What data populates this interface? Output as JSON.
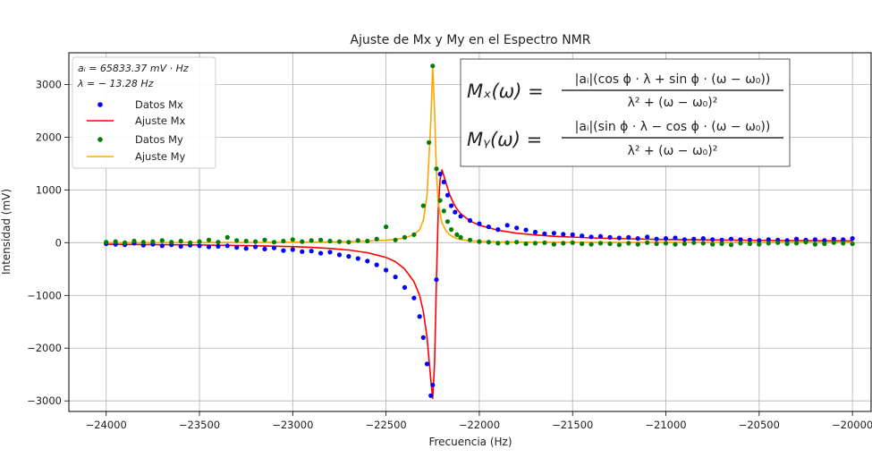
{
  "chart_data": {
    "type": "scatter",
    "title": "Ajuste de Mx y My en el Espectro NMR",
    "xlabel": "Frecuencia (Hz)",
    "ylabel": "Intensidad (mV)",
    "xlim": [
      -24200,
      -19900
    ],
    "ylim": [
      -3200,
      3600
    ],
    "xticks": [
      -24000,
      -23500,
      -23000,
      -22500,
      -22000,
      -21500,
      -21000,
      -20500,
      -20000
    ],
    "yticks": [
      -3000,
      -2000,
      -1000,
      0,
      1000,
      2000,
      3000
    ],
    "xtick_labels": [
      "−24000",
      "−23500",
      "−23000",
      "−22500",
      "−22000",
      "−21500",
      "−21000",
      "−20500",
      "−20000"
    ],
    "ytick_labels": [
      "−3000",
      "−2000",
      "−1000",
      "0",
      "1000",
      "2000",
      "3000"
    ],
    "grid": true,
    "legend": {
      "position": "top-left",
      "param_lines": [
        "aᵢ = 65833.37 mV · Hz",
        "λ = − 13.28 Hz"
      ],
      "entries": [
        {
          "label": "Datos Mx",
          "kind": "marker",
          "color": "#0000ff"
        },
        {
          "label": "Ajuste Mx",
          "kind": "line",
          "color": "#ff0000"
        },
        {
          "label": "Datos My",
          "kind": "marker",
          "color": "#008000"
        },
        {
          "label": "Ajuste My",
          "kind": "line",
          "color": "#ffa500"
        }
      ]
    },
    "formula_box": {
      "position": "top-right",
      "mx_lhs": "Mₓ(ω) =",
      "mx_num": "|aᵢ|(cos ϕ · λ + sin ϕ · (ω − ω₀))",
      "mx_den": "λ² + (ω − ω₀)²",
      "my_lhs": "Mᵧ(ω) =",
      "my_num": "|aᵢ|(sin ϕ · λ − cos ϕ · (ω − ω₀))",
      "my_den": "λ² + (ω − ω₀)²"
    },
    "series": [
      {
        "name": "Datos Mx",
        "kind": "scatter",
        "color": "#0000ff",
        "x": [
          -24000,
          -23950,
          -23900,
          -23850,
          -23800,
          -23750,
          -23700,
          -23650,
          -23600,
          -23550,
          -23500,
          -23450,
          -23400,
          -23350,
          -23300,
          -23250,
          -23200,
          -23150,
          -23100,
          -23050,
          -23000,
          -22950,
          -22900,
          -22850,
          -22800,
          -22750,
          -22700,
          -22650,
          -22600,
          -22550,
          -22500,
          -22450,
          -22400,
          -22350,
          -22320,
          -22300,
          -22280,
          -22260,
          -22250,
          -22230,
          -22210,
          -22190,
          -22170,
          -22150,
          -22130,
          -22100,
          -22050,
          -22000,
          -21950,
          -21900,
          -21850,
          -21800,
          -21750,
          -21700,
          -21650,
          -21600,
          -21550,
          -21500,
          -21450,
          -21400,
          -21350,
          -21300,
          -21250,
          -21200,
          -21150,
          -21100,
          -21050,
          -21000,
          -20950,
          -20900,
          -20850,
          -20800,
          -20750,
          -20700,
          -20650,
          -20600,
          -20550,
          -20500,
          -20450,
          -20400,
          -20350,
          -20300,
          -20250,
          -20200,
          -20150,
          -20100,
          -20050,
          -20000
        ],
        "y": [
          -20,
          -30,
          -40,
          -10,
          -50,
          -30,
          -60,
          -40,
          -70,
          -50,
          -60,
          -80,
          -70,
          -60,
          -90,
          -110,
          -80,
          -120,
          -100,
          -150,
          -130,
          -170,
          -160,
          -200,
          -180,
          -230,
          -260,
          -300,
          -350,
          -420,
          -520,
          -650,
          -850,
          -1050,
          -1400,
          -1800,
          -2300,
          -2900,
          -2700,
          -700,
          1300,
          1150,
          900,
          700,
          580,
          500,
          420,
          360,
          300,
          250,
          330,
          280,
          240,
          200,
          170,
          180,
          160,
          150,
          130,
          110,
          120,
          100,
          90,
          100,
          80,
          110,
          70,
          80,
          90,
          60,
          70,
          80,
          60,
          50,
          70,
          60,
          50,
          40,
          60,
          50,
          40,
          70,
          50,
          60,
          40,
          70,
          60,
          80
        ]
      },
      {
        "name": "Ajuste Mx",
        "kind": "line",
        "color": "#ff0000",
        "x": [
          -24000,
          -23800,
          -23600,
          -23400,
          -23200,
          -23000,
          -22900,
          -22800,
          -22700,
          -22600,
          -22500,
          -22450,
          -22400,
          -22350,
          -22320,
          -22300,
          -22280,
          -22260,
          -22250,
          -22240,
          -22230,
          -22220,
          -22210,
          -22200,
          -22180,
          -22160,
          -22140,
          -22120,
          -22100,
          -22050,
          -22000,
          -21900,
          -21800,
          -21700,
          -21600,
          -21400,
          -21200,
          -21000,
          -20800,
          -20600,
          -20400,
          -20200,
          -20000
        ],
        "y": [
          -30,
          -35,
          -40,
          -50,
          -60,
          -75,
          -90,
          -110,
          -140,
          -190,
          -280,
          -360,
          -500,
          -740,
          -1000,
          -1300,
          -1800,
          -2600,
          -2950,
          -2300,
          -700,
          600,
          1200,
          1380,
          1150,
          920,
          760,
          640,
          550,
          410,
          330,
          235,
          180,
          145,
          120,
          90,
          72,
          60,
          52,
          45,
          40,
          36,
          33
        ]
      },
      {
        "name": "Datos My",
        "kind": "scatter",
        "color": "#008000",
        "x": [
          -24000,
          -23950,
          -23900,
          -23850,
          -23800,
          -23750,
          -23700,
          -23650,
          -23600,
          -23550,
          -23500,
          -23450,
          -23400,
          -23350,
          -23300,
          -23250,
          -23200,
          -23150,
          -23100,
          -23050,
          -23000,
          -22950,
          -22900,
          -22850,
          -22800,
          -22750,
          -22700,
          -22650,
          -22600,
          -22550,
          -22500,
          -22450,
          -22400,
          -22350,
          -22300,
          -22270,
          -22250,
          -22230,
          -22210,
          -22190,
          -22170,
          -22150,
          -22120,
          -22100,
          -22050,
          -22000,
          -21950,
          -21900,
          -21850,
          -21800,
          -21750,
          -21700,
          -21650,
          -21600,
          -21550,
          -21500,
          -21450,
          -21400,
          -21350,
          -21300,
          -21250,
          -21200,
          -21150,
          -21100,
          -21050,
          -21000,
          -20950,
          -20900,
          -20850,
          -20800,
          -20750,
          -20700,
          -20650,
          -20600,
          -20550,
          -20500,
          -20450,
          -20400,
          -20350,
          -20300,
          -20250,
          -20200,
          -20150,
          -20100,
          -20050,
          -20000
        ],
        "y": [
          10,
          20,
          0,
          30,
          10,
          20,
          40,
          10,
          30,
          0,
          20,
          50,
          10,
          100,
          40,
          30,
          20,
          50,
          10,
          30,
          60,
          20,
          40,
          50,
          30,
          20,
          10,
          40,
          30,
          70,
          300,
          50,
          100,
          150,
          700,
          1900,
          3350,
          1400,
          800,
          600,
          400,
          250,
          150,
          100,
          50,
          20,
          10,
          -10,
          0,
          10,
          -20,
          -10,
          0,
          -30,
          -10,
          0,
          -20,
          -30,
          -10,
          -20,
          -40,
          -10,
          -30,
          0,
          -20,
          -10,
          -30,
          -20,
          0,
          -10,
          -30,
          -20,
          -40,
          -10,
          -20,
          -30,
          -10,
          0,
          -20,
          -10,
          10,
          -30,
          -20,
          0,
          -10,
          -20
        ]
      },
      {
        "name": "Ajuste My",
        "kind": "line",
        "color": "#ffa500",
        "x": [
          -24000,
          -23600,
          -23200,
          -23000,
          -22800,
          -22600,
          -22500,
          -22450,
          -22400,
          -22350,
          -22320,
          -22300,
          -22280,
          -22260,
          -22250,
          -22240,
          -22230,
          -22220,
          -22200,
          -22180,
          -22160,
          -22140,
          -22120,
          -22100,
          -22050,
          -22000,
          -21900,
          -21800,
          -21600,
          -21400,
          -21200,
          -21000,
          -20600,
          -20200,
          -20000
        ],
        "y": [
          0,
          2,
          5,
          8,
          15,
          30,
          45,
          60,
          90,
          150,
          250,
          420,
          900,
          2300,
          3350,
          2500,
          1300,
          750,
          380,
          230,
          150,
          110,
          80,
          60,
          35,
          25,
          15,
          10,
          7,
          5,
          4,
          3,
          2,
          2,
          1
        ]
      }
    ]
  }
}
